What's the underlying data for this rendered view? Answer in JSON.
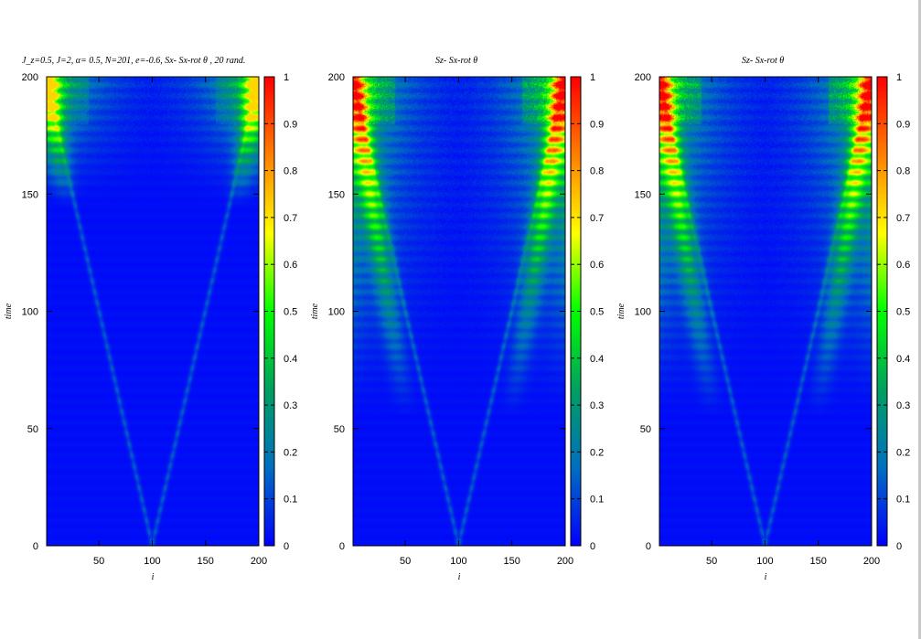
{
  "chart_data": [
    {
      "type": "heatmap",
      "title": "J_z=0.5,  J=2, α= 0.5,   N=201,  e=-0.6, Sx- Sx-rot θ , 20 rand.",
      "xlabel": "i",
      "ylabel": "time",
      "xlim": [
        1,
        200
      ],
      "ylim": [
        0,
        200
      ],
      "xticks": [
        "50",
        "100",
        "150",
        "200"
      ],
      "yticks": [
        "0",
        "50",
        "100",
        "150",
        "200"
      ],
      "colorbar_ticks": [
        "0",
        "0.1",
        "0.2",
        "0.3",
        "0.4",
        "0.5",
        "0.6",
        "0.7",
        "0.8",
        "0.9",
        "1"
      ],
      "colorbar_range": [
        0,
        1
      ],
      "colormap": [
        "#0000ff",
        "#0070c0",
        "#00a060",
        "#00ff00",
        "#ffff00",
        "#ff8000",
        "#ff0000"
      ],
      "light_cone_origin": {
        "i": 100,
        "time": 0
      },
      "front_edge_time": 145,
      "peak_value": 0.72
    },
    {
      "type": "heatmap",
      "title": "Sz- Sx-rot θ",
      "xlabel": "i",
      "ylabel": "time",
      "xlim": [
        1,
        200
      ],
      "ylim": [
        0,
        200
      ],
      "xticks": [
        "50",
        "100",
        "150",
        "200"
      ],
      "yticks": [
        "0",
        "50",
        "100",
        "150",
        "200"
      ],
      "colorbar_ticks": [
        "0",
        "0.1",
        "0.2",
        "0.3",
        "0.4",
        "0.5",
        "0.6",
        "0.7",
        "0.8",
        "0.9",
        "1"
      ],
      "colorbar_range": [
        0,
        1
      ],
      "colormap": [
        "#0000ff",
        "#0070c0",
        "#00a060",
        "#00ff00",
        "#ffff00",
        "#ff8000",
        "#ff0000"
      ],
      "light_cone_origin": {
        "i": 100,
        "time": 0
      },
      "front_edge_time": 55,
      "peak_value": 1.0
    },
    {
      "type": "heatmap",
      "title": "Sz- Sx-rot θ",
      "xlabel": "i",
      "ylabel": "time",
      "xlim": [
        1,
        200
      ],
      "ylim": [
        0,
        200
      ],
      "xticks": [
        "50",
        "100",
        "150",
        "200"
      ],
      "yticks": [
        "0",
        "50",
        "100",
        "150",
        "200"
      ],
      "colorbar_ticks": [
        "0",
        "0.1",
        "0.2",
        "0.3",
        "0.4",
        "0.5",
        "0.6",
        "0.7",
        "0.8",
        "0.9",
        "1"
      ],
      "colorbar_range": [
        0,
        1
      ],
      "colormap": [
        "#0000ff",
        "#0070c0",
        "#00a060",
        "#00ff00",
        "#ffff00",
        "#ff8000",
        "#ff0000"
      ],
      "light_cone_origin": {
        "i": 100,
        "time": 0
      },
      "front_edge_time": 55,
      "peak_value": 1.0
    }
  ]
}
